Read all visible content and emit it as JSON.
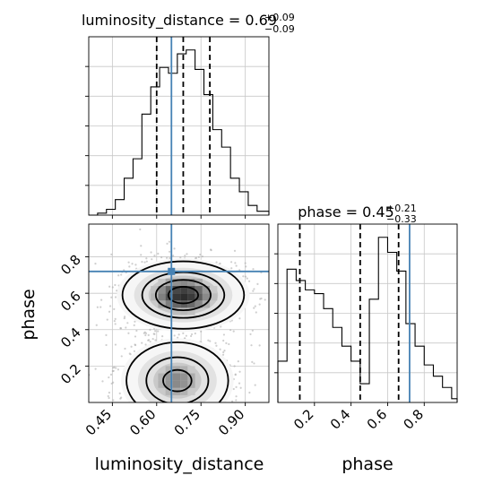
{
  "chart_data": [
    {
      "panel": "luminosity_distance-marginal",
      "type": "histogram",
      "title_param": "luminosity_distance",
      "title_value": "0.69",
      "title_upper": "+0.09",
      "title_lower": "−0.09",
      "xlim": [
        0.37,
        0.98
      ],
      "bin_edges": [
        0.37,
        0.4,
        0.43,
        0.46,
        0.49,
        0.52,
        0.55,
        0.58,
        0.61,
        0.64,
        0.67,
        0.7,
        0.73,
        0.76,
        0.79,
        0.82,
        0.85,
        0.88,
        0.91,
        0.94,
        0.98
      ],
      "counts": [
        0,
        1,
        3,
        8,
        19,
        29,
        52,
        66,
        76,
        73,
        83,
        85,
        75,
        62,
        44,
        35,
        19,
        12,
        5,
        2
      ],
      "quantiles": [
        0.6,
        0.69,
        0.78
      ],
      "truth": 0.65,
      "grid": true
    },
    {
      "panel": "phase-vs-luminosity_distance",
      "type": "2d-histogram-contour",
      "xlabel": "luminosity_distance",
      "ylabel": "phase",
      "xlim": [
        0.37,
        0.98
      ],
      "ylim": [
        0.0,
        0.98
      ],
      "xticks": [
        "0.45",
        "0.60",
        "0.75",
        "0.90"
      ],
      "yticks": [
        "0.2",
        "0.4",
        "0.6",
        "0.8"
      ],
      "truth": [
        0.65,
        0.72
      ],
      "modes": [
        {
          "x": 0.69,
          "y": 0.59,
          "sx": 0.1,
          "sy": 0.09,
          "weight": 1.0
        },
        {
          "x": 0.67,
          "y": 0.12,
          "sx": 0.09,
          "sy": 0.11,
          "weight": 0.75
        }
      ],
      "grid": true
    },
    {
      "panel": "phase-marginal",
      "type": "histogram",
      "title_param": "phase",
      "title_value": "0.45",
      "title_upper": "+0.21",
      "title_lower": "−0.33",
      "xlabel": "phase",
      "xlim": [
        0.0,
        0.98
      ],
      "xticks": [
        "0.2",
        "0.4",
        "0.6",
        "0.8"
      ],
      "bin_edges": [
        0.0,
        0.05,
        0.1,
        0.15,
        0.2,
        0.25,
        0.3,
        0.35,
        0.4,
        0.45,
        0.5,
        0.55,
        0.6,
        0.65,
        0.7,
        0.75,
        0.8,
        0.85,
        0.9,
        0.95,
        0.98
      ],
      "counts": [
        22,
        71,
        65,
        60,
        58,
        50,
        40,
        30,
        22,
        10,
        55,
        88,
        80,
        70,
        42,
        30,
        20,
        14,
        8,
        2
      ],
      "quantiles": [
        0.12,
        0.45,
        0.66
      ],
      "truth": 0.72,
      "grid": true
    }
  ],
  "colors": {
    "truth": "#4682b4",
    "hist": "#000000",
    "grid": "#c8c8c8",
    "scatter": "#a8a8a8"
  }
}
